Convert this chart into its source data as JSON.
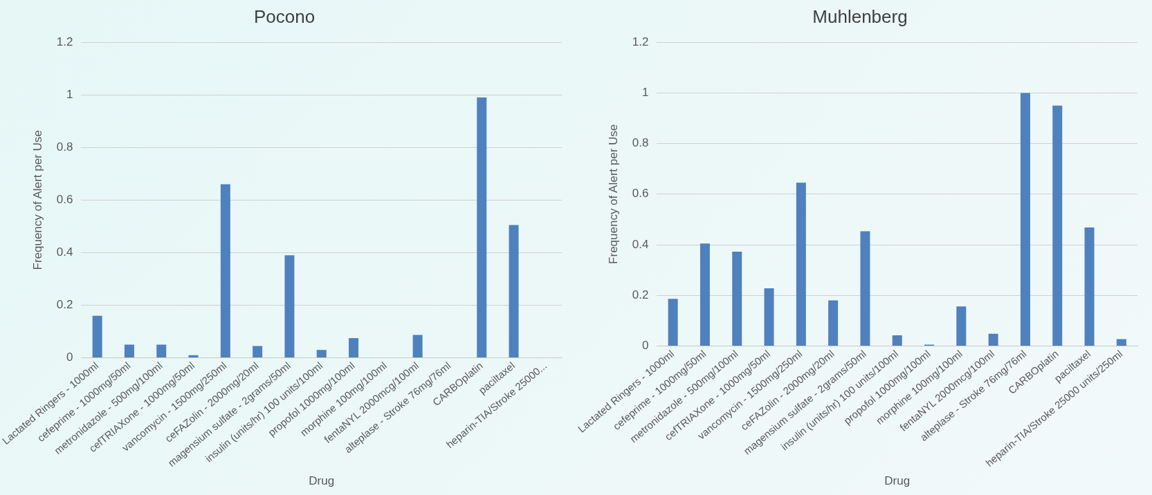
{
  "chart_data": [
    {
      "type": "bar",
      "title": "Pocono",
      "xlabel": "Drug",
      "ylabel": "Frequency of Alert per Use",
      "categories": [
        "Lactated Ringers - 1000ml",
        "cefeprime - 1000mg/50ml",
        "metronidazole - 500mg/100ml",
        "cefTRIAXone - 1000mg/50ml",
        "vancomycin - 1500mg/250ml",
        "ceFAZolin - 2000mg/20ml",
        "magensium sulfate - 2grams/50ml",
        "insulin (units/hr) 100 units/100ml",
        "propofol 1000mg/100ml",
        "morphine 100mg/100ml",
        "fentaNYL 2000mcg/100ml",
        "alteplase - Stroke 76mg/76ml",
        "CARBOplatin",
        "paciltaxel",
        "heparin-TIA/Stroke 25000..."
      ],
      "values": [
        0.16,
        0.05,
        0.05,
        0.01,
        0.66,
        0.045,
        0.39,
        0.03,
        0.075,
        0,
        0.087,
        0,
        0.99,
        0.505,
        0
      ],
      "color": "#4f81bd",
      "ylim": [
        0,
        1.2
      ],
      "yticks": [
        0,
        0.2,
        0.4,
        0.6,
        0.8,
        1,
        1.2
      ],
      "grid": "y"
    },
    {
      "type": "bar",
      "title": "Muhlenberg",
      "xlabel": "Drug",
      "ylabel": "Frequency of Alert per Use",
      "categories": [
        "Lactated Ringers - 1000ml",
        "cefeprime - 1000mg/50ml",
        "metronidazole - 500mg/100ml",
        "cefTRIAXone - 1000mg/50ml",
        "vancomycin - 1500mg/250ml",
        "ceFAZolin - 2000mg/20ml",
        "magensium sulfate - 2grams/50ml",
        "insulin (units/hr) 100 units/100ml",
        "propofol 1000mg/100ml",
        "morphine 100mg/100ml",
        "fentaNYL 2000mcg/100ml",
        "alteplase - Stroke 76mg/76ml",
        "CARBOplatin",
        "paciltaxel",
        "heparin-TIA/Stroke 25000 units/250ml"
      ],
      "values": [
        0.186,
        0.405,
        0.373,
        0.228,
        0.645,
        0.18,
        0.453,
        0.042,
        0.005,
        0.156,
        0.048,
        1,
        0.95,
        0.468,
        0.027
      ],
      "color": "#4f81bd",
      "ylim": [
        0,
        1.2
      ],
      "yticks": [
        0,
        0.2,
        0.4,
        0.6,
        0.8,
        1,
        1.2
      ],
      "grid": "y"
    }
  ]
}
